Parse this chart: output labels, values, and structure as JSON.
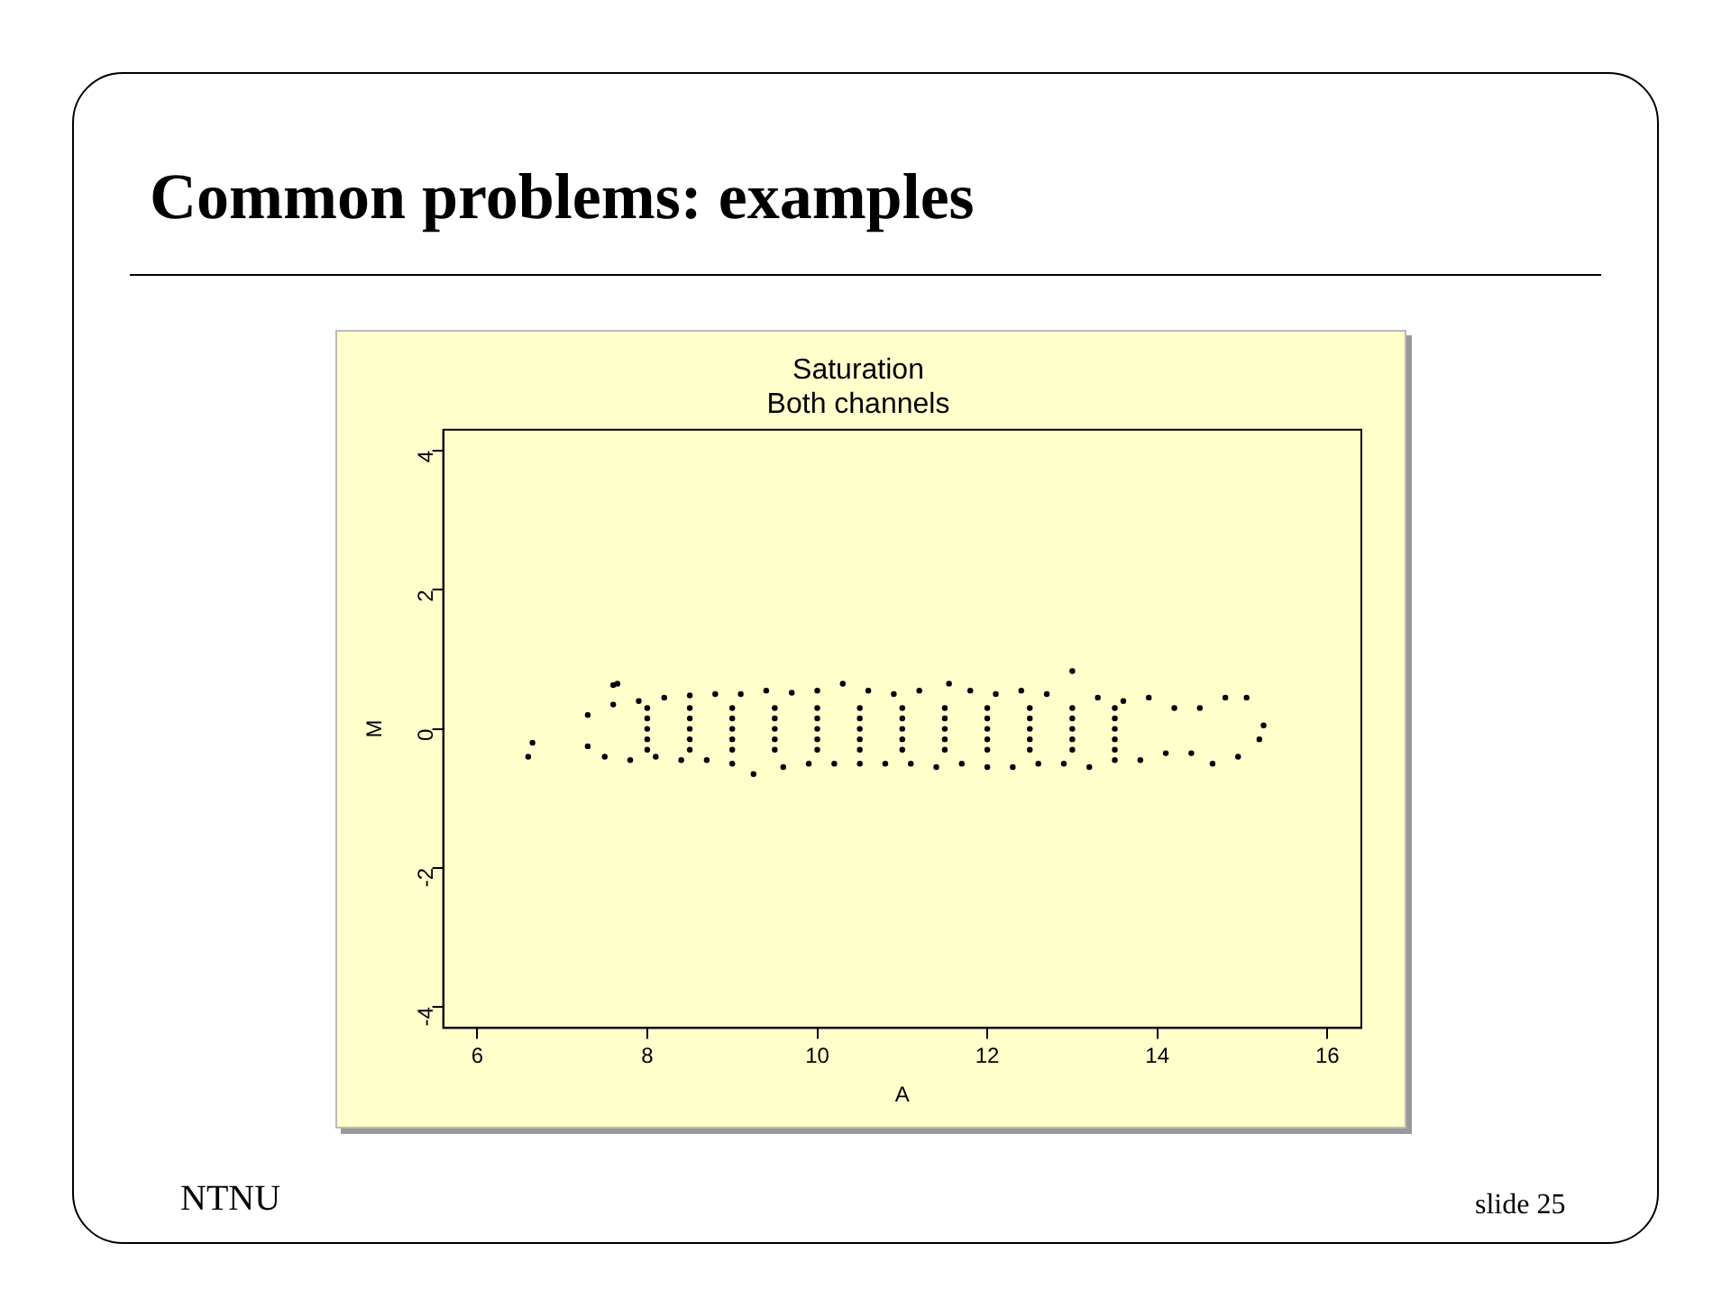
{
  "chart_data": {
    "type": "scatter",
    "title": "Saturation",
    "subtitle": "Both channels",
    "xlabel": "A",
    "ylabel": "M",
    "annotations": [
      "Common problems: examples",
      "NTNU",
      "slide 25"
    ],
    "xlim": [
      5.6,
      16.4
    ],
    "ylim": [
      -4.3,
      4.3
    ],
    "xticks": [
      6,
      8,
      10,
      12,
      14,
      16
    ],
    "yticks": [
      -4,
      -2,
      0,
      2,
      4
    ],
    "grid": false,
    "legend": false,
    "marker": "circle",
    "series": [
      {
        "color": "#000000",
        "x": [
          6.6,
          6.65,
          7.6,
          7.65,
          13.0,
          9.25,
          11.55,
          10.3,
          7.3,
          7.6,
          7.9,
          8.2,
          8.5,
          8.8,
          9.1,
          9.4,
          9.7,
          10.0,
          10.6,
          10.9,
          11.2,
          11.8,
          12.1,
          12.4,
          12.7,
          13.3,
          13.6,
          13.9,
          14.2,
          14.5,
          14.8,
          15.05,
          15.25,
          7.3,
          7.5,
          7.8,
          8.1,
          8.4,
          8.7,
          9.0,
          9.6,
          9.9,
          10.2,
          10.5,
          10.8,
          11.1,
          11.4,
          11.7,
          12.0,
          12.3,
          12.6,
          12.9,
          13.2,
          13.5,
          13.8,
          14.1,
          14.4,
          14.65,
          14.95,
          15.2,
          8,
          8,
          8,
          8,
          8,
          8.5,
          8.5,
          8.5,
          8.5,
          8.5,
          9,
          9,
          9,
          9,
          9,
          9.5,
          9.5,
          9.5,
          9.5,
          9.5,
          10,
          10,
          10,
          10,
          10,
          10.5,
          10.5,
          10.5,
          10.5,
          10.5,
          11,
          11,
          11,
          11,
          11,
          11.5,
          11.5,
          11.5,
          11.5,
          11.5,
          12,
          12,
          12,
          12,
          12,
          12.5,
          12.5,
          12.5,
          12.5,
          12.5,
          13,
          13,
          13,
          13,
          13,
          13.5,
          13.5,
          13.5,
          13.5,
          13.5
        ],
        "values": [
          -0.4,
          -0.2,
          0.63,
          0.65,
          0.83,
          -0.65,
          0.65,
          0.65,
          0.2,
          0.35,
          0.4,
          0.45,
          0.48,
          0.5,
          0.5,
          0.55,
          0.52,
          0.55,
          0.55,
          0.5,
          0.55,
          0.55,
          0.5,
          0.55,
          0.5,
          0.45,
          0.4,
          0.45,
          0.3,
          0.3,
          0.45,
          0.45,
          0.05,
          -0.25,
          -0.4,
          -0.45,
          -0.4,
          -0.45,
          -0.45,
          -0.5,
          -0.55,
          -0.5,
          -0.5,
          -0.5,
          -0.5,
          -0.5,
          -0.55,
          -0.5,
          -0.55,
          -0.55,
          -0.5,
          -0.5,
          -0.55,
          -0.45,
          -0.45,
          -0.35,
          -0.35,
          -0.5,
          -0.4,
          -0.15,
          -0.3,
          -0.15,
          0,
          0.15,
          0.3,
          -0.3,
          -0.15,
          0,
          0.15,
          0.3,
          -0.3,
          -0.15,
          0,
          0.15,
          0.3,
          -0.3,
          -0.15,
          0,
          0.15,
          0.3,
          -0.3,
          -0.15,
          0,
          0.15,
          0.3,
          -0.3,
          -0.15,
          0,
          0.15,
          0.3,
          -0.3,
          -0.15,
          0,
          0.15,
          0.3,
          -0.3,
          -0.15,
          0,
          0.15,
          0.3,
          -0.3,
          -0.15,
          0,
          0.15,
          0.3,
          -0.3,
          -0.15,
          0,
          0.15,
          0.3,
          -0.3,
          -0.15,
          0,
          0.15,
          0.3,
          -0.3,
          -0.15,
          0,
          0.15,
          0.3
        ]
      }
    ]
  }
}
